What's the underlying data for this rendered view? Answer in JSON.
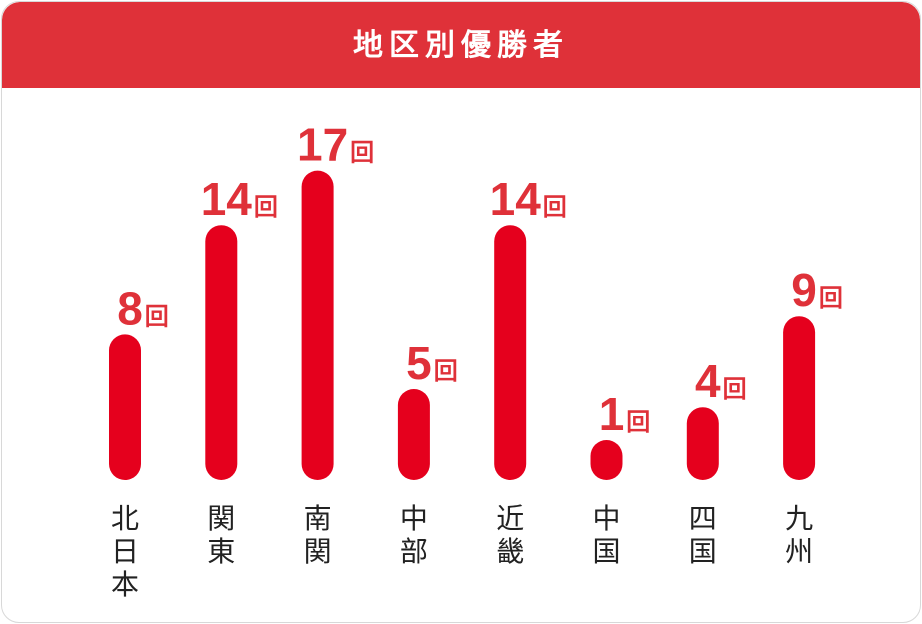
{
  "chart_data": {
    "type": "bar",
    "title": "地区別優勝者",
    "categories": [
      "北日本",
      "関東",
      "南関",
      "中部",
      "近畿",
      "中国",
      "四国",
      "九州"
    ],
    "values": [
      8,
      14,
      17,
      5,
      14,
      1,
      4,
      9
    ],
    "unit": "回",
    "ylim": [
      0,
      17
    ],
    "grid": false,
    "colors": {
      "bar": "#e5001d",
      "label": "#df3139",
      "header": "#df3139"
    }
  }
}
